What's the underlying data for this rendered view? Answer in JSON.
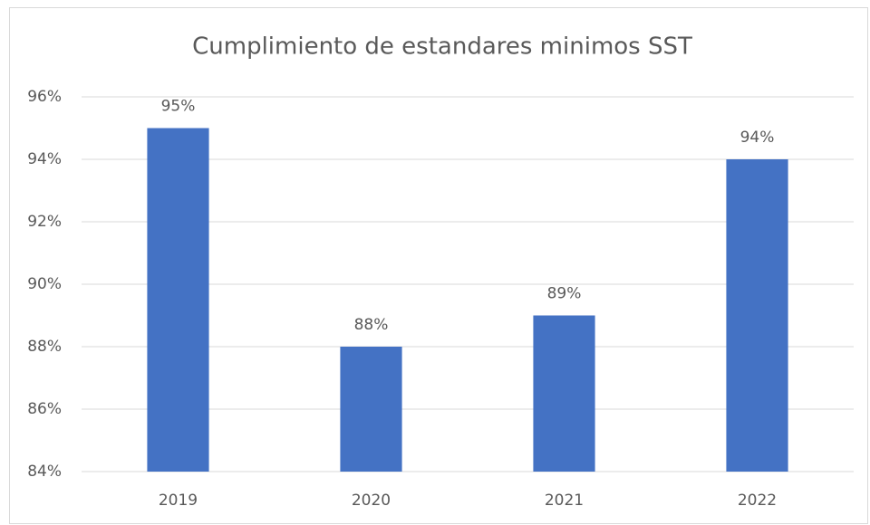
{
  "chart_data": {
    "type": "bar",
    "title": "Cumplimiento de estandares minimos SST",
    "categories": [
      "2019",
      "2020",
      "2021",
      "2022"
    ],
    "values": [
      95,
      88,
      89,
      94
    ],
    "value_labels": [
      "95%",
      "88%",
      "89%",
      "94%"
    ],
    "color": "#4472c4",
    "ylim": [
      84,
      96
    ],
    "yticks": [
      {
        "value": 84,
        "label": "84%"
      },
      {
        "value": 86,
        "label": "86%"
      },
      {
        "value": 88,
        "label": "88%"
      },
      {
        "value": 90,
        "label": "90%"
      },
      {
        "value": 92,
        "label": "92%"
      },
      {
        "value": 94,
        "label": "94%"
      },
      {
        "value": 96,
        "label": "96%"
      }
    ],
    "grid": true
  }
}
